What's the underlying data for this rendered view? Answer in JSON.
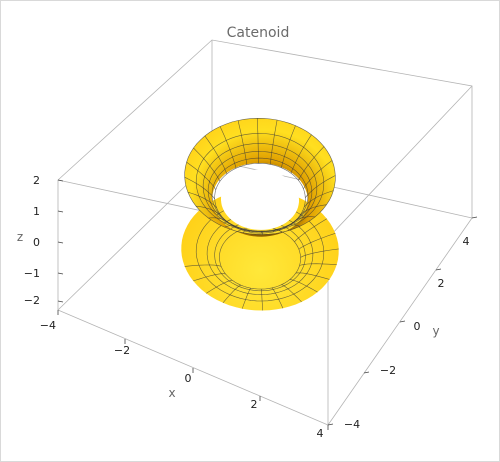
{
  "chart_data": {
    "type": "surface",
    "title": "Catenoid",
    "surface": "catenoid",
    "equation": {
      "x": "cosh(v)·cos(u)",
      "y": "cosh(v)·sin(u)",
      "z": "v"
    },
    "xlabel": "x",
    "ylabel": "y",
    "zlabel": "z",
    "xlim": [
      -4,
      4
    ],
    "ylim": [
      -4,
      4
    ],
    "zlim": [
      -2,
      2
    ],
    "x_ticks": [
      "−4",
      "−2",
      "0",
      "2",
      "4"
    ],
    "y_ticks": [
      "−4",
      "−2",
      "0",
      "2",
      "4"
    ],
    "z_ticks": [
      "2",
      "1",
      "0",
      "−1",
      "−2"
    ],
    "mesh_color": "#3a3a3a",
    "surface_colors": {
      "highlight": "#ffeb3b",
      "mid": "#ffb000",
      "shadow": "#1f1200"
    }
  }
}
